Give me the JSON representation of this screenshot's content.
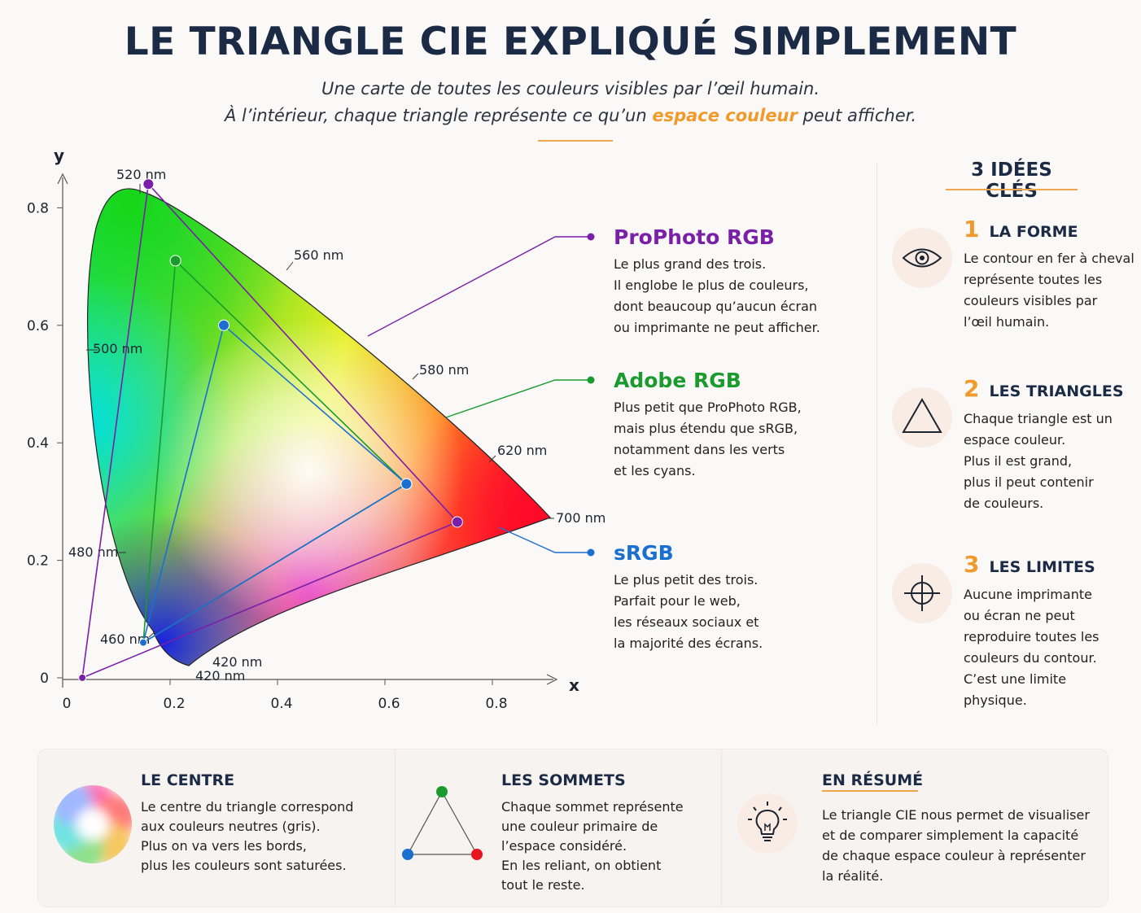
{
  "header": {
    "title": "LE TRIANGLE CIE EXPLIQUÉ SIMPLEMENT",
    "subtitle_line1": "Une carte de toutes les couleurs visibles par l’œil humain.",
    "subtitle_line2_before": "À l’intérieur, chaque triangle représente ce qu’un ",
    "subtitle_line2_accent": "espace couleur",
    "subtitle_line2_after": " peut afficher."
  },
  "diagram": {
    "axis_x_label": "x",
    "axis_y_label": "y",
    "x_ticks": [
      "0",
      "0.2",
      "0.4",
      "0.6",
      "0.8"
    ],
    "y_ticks": [
      "0",
      "0.2",
      "0.4",
      "0.6",
      "0.8"
    ],
    "wavelength_labels": [
      "520 nm",
      "560 nm",
      "500 nm",
      "580 nm",
      "620 nm",
      "700 nm",
      "480 nm",
      "460 nm",
      "420 nm",
      "420 nm"
    ],
    "gamuts": [
      {
        "name": "ProPhoto RGB",
        "color": "#7a1fa8",
        "vertices": [
          [
            0.7347,
            0.2653
          ],
          [
            0.1596,
            0.8404
          ],
          [
            0.0366,
            0.0001
          ]
        ],
        "description": "Le plus grand des trois.\nIl englobe le plus de couleurs,\ndont beaucoup qu’aucun écran\nou imprimante ne peut afficher."
      },
      {
        "name": "Adobe RGB",
        "color": "#1b9a2e",
        "vertices": [
          [
            0.64,
            0.33
          ],
          [
            0.21,
            0.71
          ],
          [
            0.15,
            0.06
          ]
        ],
        "description": "Plus petit que ProPhoto RGB,\nmais plus étendu que sRGB,\nnotamment dans les verts\net les cyans."
      },
      {
        "name": "sRGB",
        "color": "#1b6fd0",
        "vertices": [
          [
            0.64,
            0.33
          ],
          [
            0.3,
            0.6
          ],
          [
            0.15,
            0.06
          ]
        ],
        "description": "Le plus petit des trois.\nParfait pour le web,\nles réseaux sociaux et\nla majorité des écrans."
      }
    ]
  },
  "key_ideas": {
    "title": "3 IDÉES CLÉS",
    "items": [
      {
        "number": "1",
        "heading": "LA FORME",
        "icon": "eye-icon",
        "text": "Le contour en fer à cheval\nreprésente toutes les\ncouleurs visibles par\nl’œil humain."
      },
      {
        "number": "2",
        "heading": "LES TRIANGLES",
        "icon": "triangle-icon",
        "text": "Chaque triangle est un\nespace couleur.\nPlus il est grand,\nplus il peut contenir\nde couleurs."
      },
      {
        "number": "3",
        "heading": "LES LIMITES",
        "icon": "crosshair-icon",
        "text": "Aucune imprimante\nou écran ne peut\nreproduire toutes les\ncouleurs du contour.\nC’est une limite\nphysique."
      }
    ]
  },
  "bottom": {
    "center": {
      "heading": "LE CENTRE",
      "icon": "color-wheel-icon",
      "text": "Le centre du triangle correspond\naux couleurs neutres (gris).\nPlus on va vers les bords,\nplus les couleurs sont saturées."
    },
    "vertices": {
      "heading": "LES SOMMETS",
      "icon": "rgb-triangle-icon",
      "text": "Chaque sommet représente\nune couleur primaire de\nl’espace considéré.\nEn les reliant, on obtient\ntout le reste."
    },
    "summary": {
      "heading": "EN RÉSUMÉ",
      "icon": "lightbulb-icon",
      "text": "Le triangle CIE nous permet de visualiser\net de comparer simplement la capacité\nde chaque espace couleur à représenter\nla réalité."
    }
  },
  "colors": {
    "accent": "#f09a2c",
    "title": "#1b2b45"
  }
}
